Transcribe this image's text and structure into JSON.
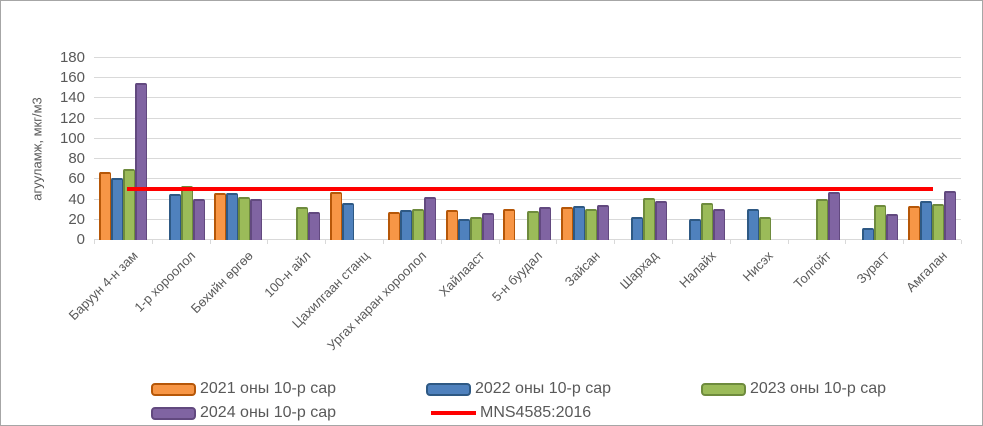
{
  "chart_data": {
    "type": "bar",
    "title": "",
    "ylabel": "агууламж, мкг/м3",
    "ylim": [
      0,
      180
    ],
    "yticks": [
      0,
      20,
      40,
      60,
      80,
      100,
      120,
      140,
      160,
      180
    ],
    "grid": true,
    "legend_position": "bottom",
    "categories": [
      "Баруун 4-н зам",
      "1-р хороолол",
      "Бөхийн өргөө",
      "100-н айл",
      "Цахилгаан станц",
      "Ургах наран хороолол",
      "Хайлааст",
      "5-н буудал",
      "Зайсан",
      "Шархад",
      "Налайх",
      "Нисэх",
      "Толгойт",
      "Зурагт",
      "Амгалан"
    ],
    "series": [
      {
        "name": "2021 оны 10-р сар",
        "color": "#F79646",
        "border_color": "#B producing65708",
        "values": [
          67,
          null,
          46,
          null,
          47,
          28,
          30,
          31,
          33,
          null,
          null,
          null,
          null,
          null,
          34
        ]
      },
      {
        "name": "2022 оны 10-р сар",
        "color": "#4F81BD",
        "border_color": "#2E5984",
        "values": [
          61,
          45,
          46,
          null,
          37,
          30,
          21,
          null,
          34,
          23,
          21,
          31,
          null,
          12,
          39
        ]
      },
      {
        "name": "2023 оны 10-р сар",
        "color": "#9BBB59",
        "border_color": "#6E8B3D",
        "values": [
          70,
          53,
          43,
          33,
          null,
          31,
          23,
          29,
          31,
          42,
          37,
          23,
          41,
          35,
          36
        ]
      },
      {
        "name": "2024 оны 10-р сар",
        "color": "#8064A2",
        "border_color": "#62497F",
        "values": [
          155,
          41,
          41,
          28,
          null,
          43,
          27,
          33,
          35,
          39,
          31,
          null,
          47,
          26,
          48
        ]
      }
    ],
    "ref_line": {
      "name": "MNS4585:2016",
      "value": 50,
      "color": "#FF0000"
    },
    "colors": {
      "grid": "#D9D9D9",
      "text": "#595959",
      "frame_border": "#A6A6A6"
    }
  }
}
